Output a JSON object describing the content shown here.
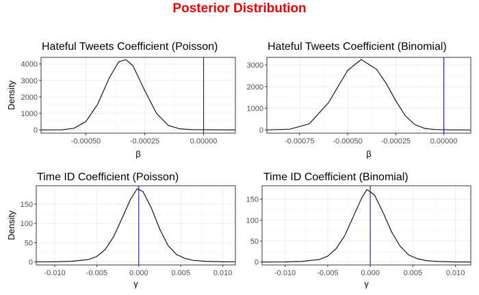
{
  "figure": {
    "title": "Posterior Distribution",
    "title_color": "#ee0000",
    "curve_color": "#000000",
    "vline_color": "#00008b",
    "panel_border_color": "#333333",
    "grid_color": "#ebebeb"
  },
  "chart_data": [
    {
      "type": "line",
      "title": "Hateful Tweets Coefficient (Poisson)",
      "xlabel": "β",
      "ylabel": "Density",
      "xlim": [
        -0.00069,
        0.000135
      ],
      "ylim": [
        -200,
        4400
      ],
      "xticks": [
        -0.0005,
        -0.00025,
        0.0
      ],
      "xtick_labels": [
        "-0.00050",
        "-0.00025",
        "0.00000"
      ],
      "yticks": [
        0,
        1000,
        2000,
        3000,
        4000
      ],
      "ytick_labels": [
        "0",
        "1000",
        "2000",
        "3000",
        "4000"
      ],
      "grid": true,
      "vline": 0.0,
      "series": [
        {
          "x": [
            -0.00069,
            -0.0006,
            -0.00055,
            -0.0005,
            -0.00045,
            -0.0004,
            -0.00036,
            -0.00033,
            -0.0003,
            -0.00025,
            -0.0002,
            -0.00015,
            -0.0001,
            -5e-05,
            0.0,
            5e-05,
            0.0001,
            0.000135
          ],
          "y": [
            0,
            5,
            100,
            500,
            1550,
            3170,
            4130,
            4260,
            3890,
            2390,
            1000,
            270,
            60,
            15,
            8,
            4,
            1,
            0
          ]
        }
      ]
    },
    {
      "type": "line",
      "title": "Hateful Tweets Coefficient (Binomial)",
      "xlabel": "β",
      "ylabel": "",
      "xlim": [
        -0.00092,
        0.00014
      ],
      "ylim": [
        -150,
        3350
      ],
      "xticks": [
        -0.00075,
        -0.0005,
        -0.00025,
        0.0
      ],
      "xtick_labels": [
        "-0.00075",
        "-0.00050",
        "-0.00025",
        "0.00000"
      ],
      "yticks": [
        0,
        1000,
        2000,
        3000
      ],
      "ytick_labels": [
        "0",
        "1000",
        "2000",
        "3000"
      ],
      "grid": true,
      "vline": 0.0,
      "series": [
        {
          "x": [
            -0.00092,
            -0.0008,
            -0.0007,
            -0.0006,
            -0.0005,
            -0.00043,
            -0.00035,
            -0.0003,
            -0.00025,
            -0.0002,
            -0.00015,
            -0.0001,
            -5e-05,
            0.0,
            5e-05,
            0.00014
          ],
          "y": [
            0,
            35,
            280,
            1250,
            2750,
            3250,
            2800,
            2150,
            1350,
            650,
            240,
            70,
            20,
            8,
            3,
            0
          ]
        }
      ]
    },
    {
      "type": "line",
      "title": "Time ID Coefficient (Poisson)",
      "xlabel": "γ",
      "ylabel": "Density",
      "xlim": [
        -0.0122,
        0.0115
      ],
      "ylim": [
        -8,
        198
      ],
      "xticks": [
        -0.01,
        -0.005,
        0.0,
        0.005,
        0.01
      ],
      "xtick_labels": [
        "-0.010",
        "-0.005",
        "0.000",
        "0.005",
        "0.010"
      ],
      "yticks": [
        0,
        50,
        100,
        150
      ],
      "ytick_labels": [
        "0",
        "50",
        "100",
        "150"
      ],
      "grid": true,
      "vline": 0.0,
      "series": [
        {
          "x": [
            -0.0122,
            -0.01,
            -0.008,
            -0.006,
            -0.005,
            -0.004,
            -0.003,
            -0.002,
            -0.001,
            -0.0002,
            0.0005,
            0.0015,
            0.0025,
            0.0035,
            0.0045,
            0.0055,
            0.0065,
            0.008,
            0.01,
            0.0115
          ],
          "y": [
            0,
            0.3,
            1.5,
            6,
            14,
            32,
            65,
            113,
            162,
            190,
            183,
            140,
            85,
            42,
            19,
            9,
            4,
            1.5,
            0.4,
            0
          ]
        }
      ]
    },
    {
      "type": "line",
      "title": "Time ID Coefficient (Binomial)",
      "xlabel": "γ",
      "ylabel": "",
      "xlim": [
        -0.0127,
        0.0118
      ],
      "ylim": [
        -7,
        182
      ],
      "xticks": [
        -0.01,
        -0.005,
        0.0,
        0.005,
        0.01
      ],
      "xtick_labels": [
        "-0.010",
        "-0.005",
        "0.000",
        "0.005",
        "0.010"
      ],
      "yticks": [
        0,
        50,
        100,
        150
      ],
      "ytick_labels": [
        "0",
        "50",
        "100",
        "150"
      ],
      "grid": true,
      "vline": 0.0,
      "series": [
        {
          "x": [
            -0.0127,
            -0.01,
            -0.008,
            -0.006,
            -0.005,
            -0.004,
            -0.003,
            -0.002,
            -0.001,
            -0.0004,
            0.0005,
            0.0015,
            0.0025,
            0.0035,
            0.0045,
            0.0055,
            0.0065,
            0.008,
            0.01,
            0.0118
          ],
          "y": [
            0,
            0.3,
            1.5,
            6,
            14,
            32,
            63,
            108,
            153,
            173,
            160,
            118,
            72,
            38,
            17,
            8,
            3.5,
            1.2,
            0.3,
            0
          ]
        }
      ]
    }
  ]
}
